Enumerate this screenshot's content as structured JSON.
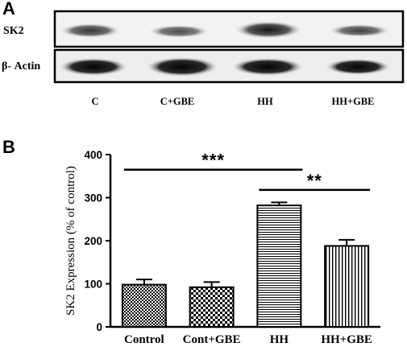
{
  "panel_a": {
    "letter": "A",
    "rows": [
      {
        "label": "SK2"
      },
      {
        "label": "β- Actin"
      }
    ],
    "lane_labels": [
      "C",
      "C+GBE",
      "HH",
      "HH+GBE"
    ]
  },
  "chart_data": {
    "panel_letter": "B",
    "type": "bar",
    "categories": [
      "Control",
      "Cont+GBE",
      "HH",
      "HH+GBE"
    ],
    "values": [
      98,
      92,
      282,
      188
    ],
    "errors": [
      12,
      12,
      7,
      14
    ],
    "patterns": [
      "checker-small",
      "checker-large",
      "horizontal-lines",
      "vertical-lines"
    ],
    "ylabel": "SK2 Expression (% of control)",
    "ylim": [
      0,
      400
    ],
    "yticks": [
      "0",
      "100",
      "200",
      "300",
      "400"
    ],
    "grid": false,
    "significance": [
      {
        "from": 0,
        "to": 2,
        "label": "***",
        "y": 365
      },
      {
        "from": 2,
        "to": 3,
        "label": "**",
        "y": 318
      }
    ]
  }
}
